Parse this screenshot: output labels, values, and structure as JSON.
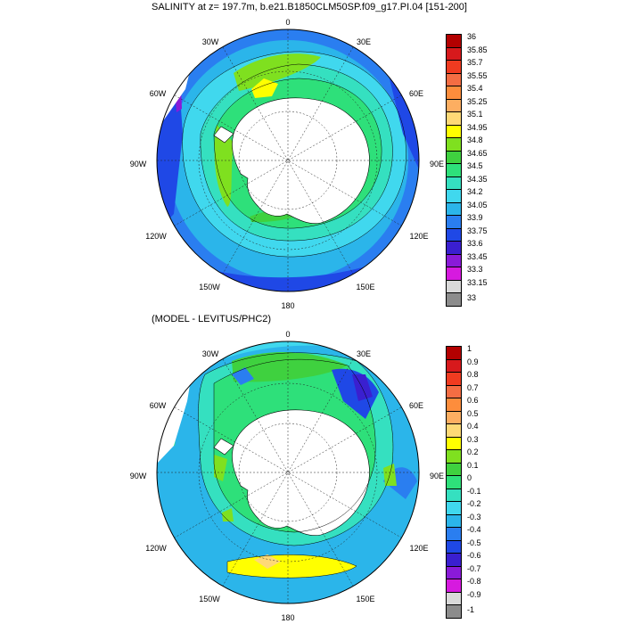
{
  "top_panel": {
    "title": "SALINITY at z= 197.7m, b.e21.B1850CLM50SP.f09_g17.PI.04 [151-200]",
    "longitude_labels": [
      "0",
      "30E",
      "60E",
      "90E",
      "120E",
      "150E",
      "180",
      "150W",
      "120W",
      "90W",
      "60W",
      "30W"
    ],
    "colorbar": {
      "labels": [
        "36",
        "35.85",
        "35.7",
        "35.55",
        "35.4",
        "35.25",
        "35.1",
        "34.95",
        "34.8",
        "34.65",
        "34.5",
        "34.35",
        "34.2",
        "34.05",
        "33.9",
        "33.75",
        "33.6",
        "33.45",
        "33.3",
        "33.15",
        "33"
      ],
      "colors": [
        "#b30000",
        "#d7191c",
        "#f03b20",
        "#f46d43",
        "#fd8d3c",
        "#fdae61",
        "#fed976",
        "#ffff00",
        "#7fe01f",
        "#3fd13f",
        "#2ee07a",
        "#35e0c0",
        "#40d8ee",
        "#2bb5ea",
        "#2a7ef0",
        "#1f48e6",
        "#3a1fd0",
        "#8a1ad8",
        "#d61adf",
        "#d9d9d9",
        "#8c8c8c"
      ]
    }
  },
  "bottom_panel": {
    "title": "(MODEL - LEVITUS/PHC2)",
    "longitude_labels": [
      "0",
      "30E",
      "60E",
      "90E",
      "120E",
      "150E",
      "180",
      "150W",
      "120W",
      "90W",
      "60W",
      "30W"
    ],
    "colorbar": {
      "labels": [
        "1",
        "0.9",
        "0.8",
        "0.7",
        "0.6",
        "0.5",
        "0.4",
        "0.3",
        "0.2",
        "0.1",
        "0",
        "-0.1",
        "-0.2",
        "-0.3",
        "-0.4",
        "-0.5",
        "-0.6",
        "-0.7",
        "-0.8",
        "-0.9",
        "-1"
      ],
      "colors": [
        "#b30000",
        "#d7191c",
        "#f03b20",
        "#f46d43",
        "#fd8d3c",
        "#fdae61",
        "#fed976",
        "#ffff00",
        "#7fe01f",
        "#3fd13f",
        "#2ee07a",
        "#35e0c0",
        "#40d8ee",
        "#2bb5ea",
        "#2a7ef0",
        "#1f48e6",
        "#3a1fd0",
        "#8a1ad8",
        "#d61adf",
        "#d9d9d9",
        "#8c8c8c"
      ]
    }
  }
}
